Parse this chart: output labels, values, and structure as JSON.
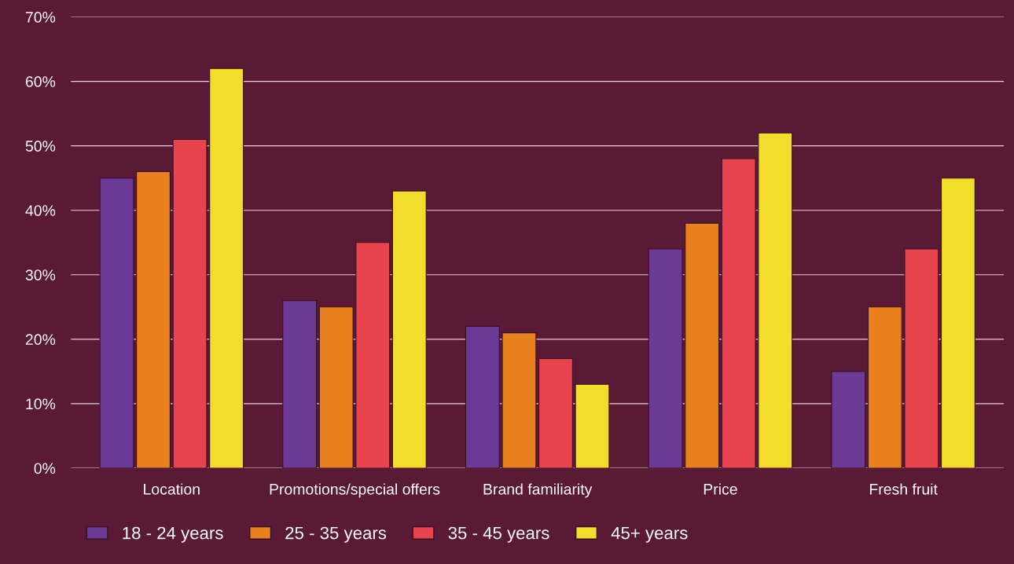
{
  "chart_data": {
    "type": "bar",
    "categories": [
      "Location",
      "Promotions/special offers",
      "Brand familiarity",
      "Price",
      "Fresh fruit"
    ],
    "series": [
      {
        "name": "18 - 24 years",
        "color": "#6a3a96",
        "values": [
          45,
          26,
          22,
          34,
          15
        ]
      },
      {
        "name": "25 - 35 years",
        "color": "#e8801f",
        "values": [
          46,
          25,
          21,
          38,
          25
        ]
      },
      {
        "name": "35 - 45 years",
        "color": "#e84450",
        "values": [
          51,
          35,
          17,
          48,
          34
        ]
      },
      {
        "name": "45+ years",
        "color": "#f2dc2c",
        "values": [
          62,
          43,
          13,
          52,
          45
        ]
      }
    ],
    "ylim": [
      0,
      70
    ],
    "yticks": [
      {
        "value": 0,
        "label": "0%"
      },
      {
        "value": 10,
        "label": "10%"
      },
      {
        "value": 20,
        "label": "20%"
      },
      {
        "value": 30,
        "label": "30%"
      },
      {
        "value": 40,
        "label": "40%"
      },
      {
        "value": 50,
        "label": "50%"
      },
      {
        "value": 60,
        "label": "60%"
      },
      {
        "value": 70,
        "label": "70%"
      }
    ],
    "grid": "y",
    "legend": "bottom"
  }
}
